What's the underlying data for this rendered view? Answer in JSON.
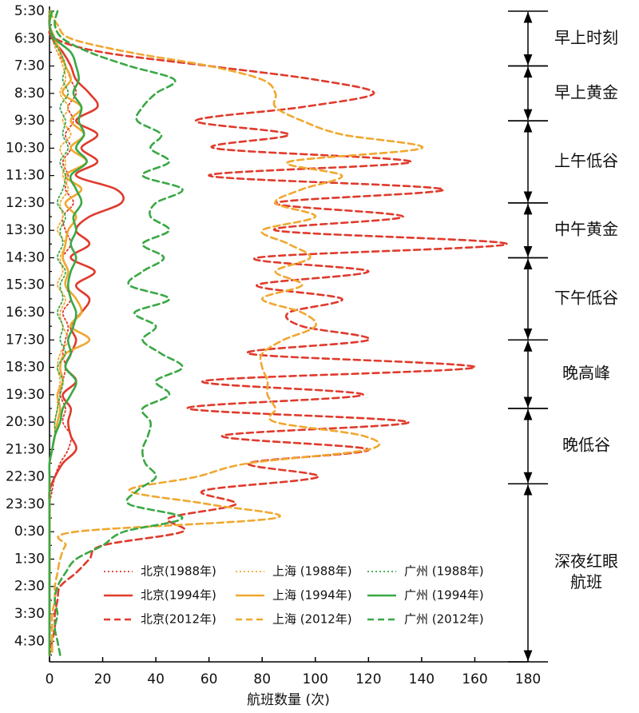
{
  "chart_data": {
    "type": "line",
    "orientation": "horizontal",
    "xlabel": "航班数量 (次)",
    "xlim": [
      0,
      180
    ],
    "xticks": [
      0,
      20,
      40,
      60,
      80,
      100,
      120,
      140,
      160,
      180
    ],
    "categories": [
      "5:30",
      null,
      "6:30",
      null,
      "7:30",
      null,
      "8:30",
      null,
      "9:30",
      null,
      "10:30",
      null,
      "11:30",
      null,
      "12:30",
      null,
      "13:30",
      null,
      "14:30",
      null,
      "15:30",
      null,
      "16:30",
      null,
      "17:30",
      null,
      "18:30",
      null,
      "19:30",
      null,
      "20:30",
      null,
      "21:30",
      null,
      "22:30",
      null,
      "23:30",
      null,
      "0:30",
      null,
      "1:30",
      null,
      "2:30",
      null,
      "3:30",
      null,
      "4:30",
      null
    ],
    "legend": "bottom",
    "series": [
      {
        "name": "北京(1988年)",
        "color": "#e03a2c",
        "dash": "dotted",
        "values": [
          0,
          0,
          1,
          3,
          6,
          8,
          10,
          7,
          9,
          6,
          8,
          5,
          7,
          6,
          9,
          5,
          6,
          8,
          5,
          7,
          6,
          8,
          5,
          7,
          6,
          5,
          6,
          5,
          4,
          6,
          5,
          8,
          7,
          4,
          2,
          1,
          0,
          0,
          0,
          0,
          0,
          0,
          0,
          0,
          0,
          0,
          0,
          0
        ]
      },
      {
        "name": "北京(1994年)",
        "color": "#e03a2c",
        "dash": "solid",
        "values": [
          0,
          0,
          1,
          5,
          8,
          10,
          15,
          18,
          10,
          18,
          12,
          18,
          10,
          25,
          27,
          15,
          10,
          15,
          8,
          17,
          10,
          15,
          12,
          8,
          10,
          8,
          6,
          10,
          5,
          8,
          7,
          8,
          10,
          5,
          2,
          0,
          0,
          0,
          0,
          0,
          0,
          0,
          0,
          0,
          0,
          0,
          0,
          0
        ]
      },
      {
        "name": "北京(2012年)",
        "color": "#e03a2c",
        "dash": "dashed",
        "values": [
          0,
          0,
          2,
          20,
          60,
          100,
          122,
          95,
          55,
          90,
          62,
          136,
          60,
          148,
          85,
          133,
          85,
          172,
          78,
          120,
          78,
          110,
          90,
          95,
          120,
          75,
          160,
          58,
          118,
          52,
          135,
          65,
          120,
          75,
          101,
          58,
          70,
          45,
          50,
          20,
          15,
          10,
          4,
          3,
          2,
          2,
          1,
          0
        ]
      },
      {
        "name": "上海 (1988年)",
        "color": "#f0a830",
        "dash": "dotted",
        "values": [
          0,
          0,
          1,
          3,
          5,
          6,
          4,
          7,
          5,
          8,
          4,
          6,
          5,
          7,
          4,
          5,
          3,
          6,
          4,
          5,
          3,
          6,
          4,
          5,
          7,
          4,
          3,
          4,
          3,
          3,
          2,
          2,
          1,
          0,
          0,
          0,
          0,
          0,
          0,
          0,
          0,
          0,
          0,
          0,
          0,
          0,
          0,
          0
        ]
      },
      {
        "name": "上海 (1994年)",
        "color": "#f0a830",
        "dash": "solid",
        "values": [
          0,
          0,
          2,
          4,
          6,
          8,
          5,
          12,
          8,
          13,
          8,
          14,
          6,
          12,
          6,
          10,
          7,
          6,
          5,
          7,
          6,
          10,
          12,
          8,
          15,
          6,
          4,
          5,
          3,
          4,
          3,
          2,
          1,
          0,
          0,
          0,
          0,
          0,
          0,
          0,
          0,
          0,
          0,
          0,
          0,
          0,
          0,
          0
        ]
      },
      {
        "name": "上海 (2012年)",
        "color": "#f0a830",
        "dash": "dashed",
        "values": [
          0,
          3,
          8,
          30,
          60,
          80,
          85,
          85,
          95,
          110,
          140,
          90,
          110,
          95,
          85,
          100,
          80,
          90,
          98,
          85,
          95,
          80,
          95,
          100,
          88,
          80,
          80,
          82,
          82,
          85,
          85,
          118,
          120,
          75,
          55,
          30,
          60,
          85,
          10,
          6,
          4,
          3,
          2,
          2,
          1,
          1,
          1,
          1
        ]
      },
      {
        "name": "广州 (1988年)",
        "color": "#3aa845",
        "dash": "dotted",
        "values": [
          0,
          0,
          1,
          4,
          6,
          5,
          7,
          4,
          6,
          5,
          7,
          4,
          6,
          5,
          3,
          6,
          4,
          5,
          3,
          6,
          4,
          5,
          3,
          5,
          4,
          6,
          3,
          5,
          4,
          3,
          2,
          2,
          1,
          0,
          0,
          0,
          0,
          0,
          0,
          0,
          0,
          0,
          0,
          0,
          0,
          0,
          0,
          0
        ]
      },
      {
        "name": "广州 (1994年)",
        "color": "#3aa845",
        "dash": "solid",
        "values": [
          1,
          0,
          2,
          8,
          10,
          11,
          9,
          12,
          11,
          13,
          10,
          14,
          8,
          10,
          12,
          9,
          10,
          8,
          10,
          8,
          7,
          8,
          10,
          9,
          7,
          8,
          6,
          10,
          8,
          5,
          4,
          2,
          1,
          0,
          0,
          0,
          0,
          0,
          0,
          0,
          0,
          0,
          0,
          0,
          0,
          0,
          0,
          0
        ]
      },
      {
        "name": "广州 (2012年)",
        "color": "#3aa845",
        "dash": "dashed",
        "values": [
          3,
          2,
          5,
          15,
          30,
          47,
          40,
          35,
          33,
          42,
          38,
          45,
          35,
          50,
          40,
          38,
          45,
          35,
          43,
          35,
          30,
          45,
          32,
          40,
          35,
          42,
          50,
          40,
          45,
          35,
          38,
          37,
          35,
          36,
          40,
          33,
          30,
          50,
          28,
          20,
          10,
          6,
          3,
          2,
          3,
          2,
          3,
          4
        ]
      }
    ],
    "periods": [
      {
        "label": [
          "早上时刻"
        ],
        "from": "5:30",
        "to": "7:30"
      },
      {
        "label": [
          "早上黄金"
        ],
        "from": "7:30",
        "to": "9:30"
      },
      {
        "label": [
          "上午低谷"
        ],
        "from": "9:30",
        "to": "12:30"
      },
      {
        "label": [
          "中午黄金"
        ],
        "from": "12:30",
        "to": "14:30"
      },
      {
        "label": [
          "下午低谷"
        ],
        "from": "14:30",
        "to": "17:30"
      },
      {
        "label": [
          "晚高峰"
        ],
        "from": "17:30",
        "to": "20:00"
      },
      {
        "label": [
          "晚低谷"
        ],
        "from": "20:00",
        "to": "22:45"
      },
      {
        "label": [
          "深夜红眼",
          "航班"
        ],
        "from": "22:45"
      }
    ]
  }
}
